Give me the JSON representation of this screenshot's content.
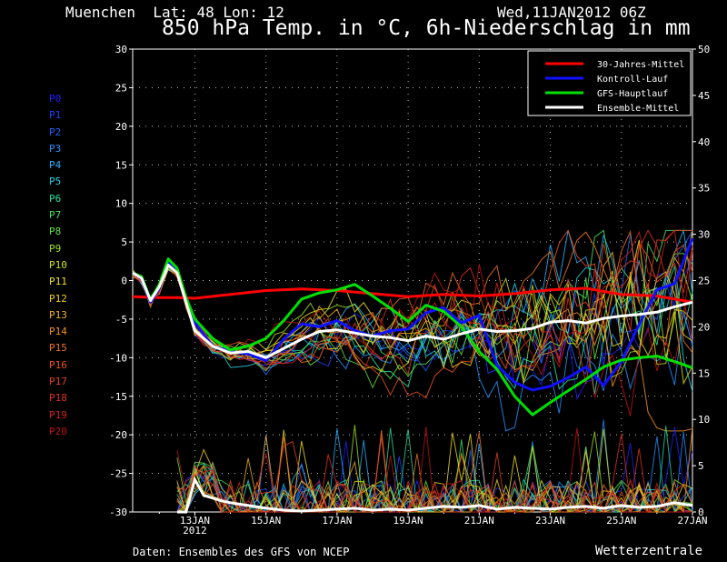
{
  "header": {
    "location": "Muenchen  Lat: 48 Lon: 12",
    "date": "Wed,11JAN2012 06Z",
    "title": "850 hPa Temp. in °C, 6h-Niederschlag in mm"
  },
  "footer": {
    "source": "Daten: Ensembles des GFS von NCEP",
    "brand": "Wetterzentrale"
  },
  "members": [
    {
      "label": "P0",
      "color": "#2020ff"
    },
    {
      "label": "P1",
      "color": "#2040ff"
    },
    {
      "label": "P2",
      "color": "#2060ff"
    },
    {
      "label": "P3",
      "color": "#1e90ff"
    },
    {
      "label": "P4",
      "color": "#20b0ff"
    },
    {
      "label": "P5",
      "color": "#20d0e0"
    },
    {
      "label": "P6",
      "color": "#20e0a0"
    },
    {
      "label": "P7",
      "color": "#40e060"
    },
    {
      "label": "P8",
      "color": "#60e040"
    },
    {
      "label": "P9",
      "color": "#a0e020"
    },
    {
      "label": "P10",
      "color": "#d0e010"
    },
    {
      "label": "P11",
      "color": "#f0e020"
    },
    {
      "label": "P12",
      "color": "#f0d020"
    },
    {
      "label": "P13",
      "color": "#f0b020"
    },
    {
      "label": "P14",
      "color": "#f09020"
    },
    {
      "label": "P15",
      "color": "#f07020"
    },
    {
      "label": "P16",
      "color": "#f05020"
    },
    {
      "label": "P17",
      "color": "#e04020"
    },
    {
      "label": "P18",
      "color": "#e03020"
    },
    {
      "label": "P19",
      "color": "#d02020"
    },
    {
      "label": "P20",
      "color": "#c01010"
    }
  ],
  "chart_data": {
    "type": "line",
    "title": "850 hPa Temp. in °C, 6h-Niederschlag in mm",
    "x_ticks": [
      "13JAN",
      "15JAN",
      "17JAN",
      "19JAN",
      "21JAN",
      "23JAN",
      "25JAN",
      "27JAN"
    ],
    "x_tick_sub": "2012",
    "x_range_days": [
      11.25,
      27
    ],
    "ylim_left": [
      -30,
      30
    ],
    "ylim_right": [
      0,
      50
    ],
    "y_ticks_left": [
      30,
      25,
      20,
      15,
      10,
      5,
      0,
      -5,
      -10,
      -15,
      -20,
      -25,
      -30
    ],
    "y_ticks_right": [
      50,
      45,
      40,
      35,
      30,
      25,
      20,
      15,
      10,
      5,
      0
    ],
    "grid": true,
    "legend_position": "top-right",
    "legend": [
      {
        "name": "30-Jahres-Mittel",
        "color": "#ff0000"
      },
      {
        "name": "Kontroll-Lauf",
        "color": "#1010ff"
      },
      {
        "name": "GFS-Hauptlauf",
        "color": "#00e000"
      },
      {
        "name": "Ensemble-Mittel",
        "color": "#ffffff"
      }
    ],
    "series": [
      {
        "name": "30-Jahres-Mittel",
        "color": "#ff0000",
        "width": 3,
        "x": [
          11.25,
          12,
          12.5,
          13,
          14,
          15,
          16,
          17,
          18,
          19,
          20,
          21,
          22,
          23,
          24,
          25,
          26,
          27
        ],
        "y": [
          -2.1,
          -2.2,
          -2.2,
          -2.3,
          -1.8,
          -1.3,
          -1.1,
          -1.3,
          -1.7,
          -2.1,
          -1.8,
          -2.0,
          -1.7,
          -1.2,
          -1.0,
          -1.8,
          -2.0,
          -2.8
        ]
      },
      {
        "name": "Kontroll-Lauf",
        "color": "#1010ff",
        "width": 3,
        "x": [
          11.25,
          11.5,
          11.75,
          12,
          12.25,
          12.5,
          12.75,
          13,
          13.5,
          14,
          14.5,
          15,
          15.5,
          16,
          16.5,
          17,
          17.5,
          18,
          18.5,
          19,
          19.5,
          20,
          20.5,
          21,
          21.5,
          22,
          22.5,
          23,
          23.5,
          24,
          24.5,
          25,
          25.5,
          26,
          26.5,
          27
        ],
        "y": [
          1.0,
          0.2,
          -2.8,
          -1.0,
          2.4,
          1.5,
          -2.5,
          -5.5,
          -8.5,
          -9.2,
          -9.5,
          -10.4,
          -7.6,
          -5.6,
          -6.0,
          -5.2,
          -6.5,
          -7.2,
          -6.5,
          -6.3,
          -4.2,
          -3.5,
          -5.5,
          -4.5,
          -11.0,
          -13.2,
          -14.2,
          -13.7,
          -12.6,
          -11.2,
          -13.6,
          -10.5,
          -5.7,
          -1.2,
          -0.4,
          5.5
        ]
      },
      {
        "name": "GFS-Hauptlauf",
        "color": "#00e000",
        "width": 3,
        "x": [
          11.25,
          11.5,
          11.75,
          12,
          12.25,
          12.5,
          12.75,
          13,
          13.5,
          14,
          14.5,
          15,
          15.5,
          16,
          16.5,
          17,
          17.5,
          18,
          18.5,
          19,
          19.5,
          20,
          20.5,
          21,
          21.5,
          22,
          22.5,
          23,
          23.5,
          24,
          24.5,
          25,
          25.5,
          26,
          26.5,
          27
        ],
        "y": [
          1.0,
          0.5,
          -2.5,
          -0.5,
          2.8,
          1.6,
          -2.2,
          -5.0,
          -7.5,
          -9.0,
          -8.5,
          -7.5,
          -5.2,
          -2.4,
          -1.6,
          -1.2,
          -0.5,
          -2.0,
          -3.6,
          -5.3,
          -3.2,
          -4.0,
          -6.0,
          -9.2,
          -11.5,
          -15.0,
          -17.4,
          -15.8,
          -14.3,
          -12.8,
          -11.2,
          -10.3,
          -10.0,
          -9.8,
          -10.5,
          -11.3
        ]
      },
      {
        "name": "Ensemble-Mittel",
        "color": "#ffffff",
        "width": 3,
        "x": [
          11.25,
          11.5,
          11.75,
          12,
          12.25,
          12.5,
          12.75,
          13,
          13.5,
          14,
          14.5,
          15,
          15.5,
          16,
          16.5,
          17,
          17.5,
          18,
          18.5,
          19,
          19.5,
          20,
          20.5,
          21,
          21.5,
          22,
          22.5,
          23,
          23.5,
          24,
          24.5,
          25,
          25.5,
          26,
          26.5,
          27
        ],
        "y": [
          1.0,
          0.3,
          -2.6,
          -0.8,
          2.0,
          1.0,
          -2.8,
          -6.5,
          -8.5,
          -9.4,
          -9.2,
          -10.0,
          -8.8,
          -7.6,
          -6.6,
          -6.4,
          -6.8,
          -7.2,
          -7.4,
          -7.8,
          -7.2,
          -7.6,
          -6.9,
          -6.3,
          -6.6,
          -6.5,
          -6.2,
          -5.4,
          -5.2,
          -5.5,
          -4.9,
          -4.6,
          -4.4,
          -4.1,
          -3.4,
          -2.8
        ]
      }
    ],
    "precip_mean": {
      "name": "Ensemble-Mittel Niederschlag",
      "color": "#ffffff",
      "width": 3,
      "x": [
        12.5,
        12.75,
        13,
        13.25,
        13.5,
        13.75,
        14,
        14.5,
        15,
        15.5,
        16,
        17,
        17.5,
        18,
        18.5,
        19,
        19.5,
        20,
        20.5,
        21,
        21.5,
        22,
        22.5,
        23,
        23.5,
        24,
        24.5,
        25,
        25.5,
        26,
        26.5,
        27
      ],
      "y": [
        0,
        0,
        3.5,
        1.8,
        1.5,
        1.2,
        1.0,
        0.7,
        0.4,
        0.2,
        0.1,
        0.3,
        0.4,
        0.2,
        0.3,
        0.2,
        0.4,
        0.6,
        0.5,
        0.7,
        0.3,
        0.5,
        0.4,
        0.3,
        0.5,
        0.6,
        0.4,
        0.7,
        0.5,
        0.6,
        1.0,
        0.7
      ]
    }
  }
}
